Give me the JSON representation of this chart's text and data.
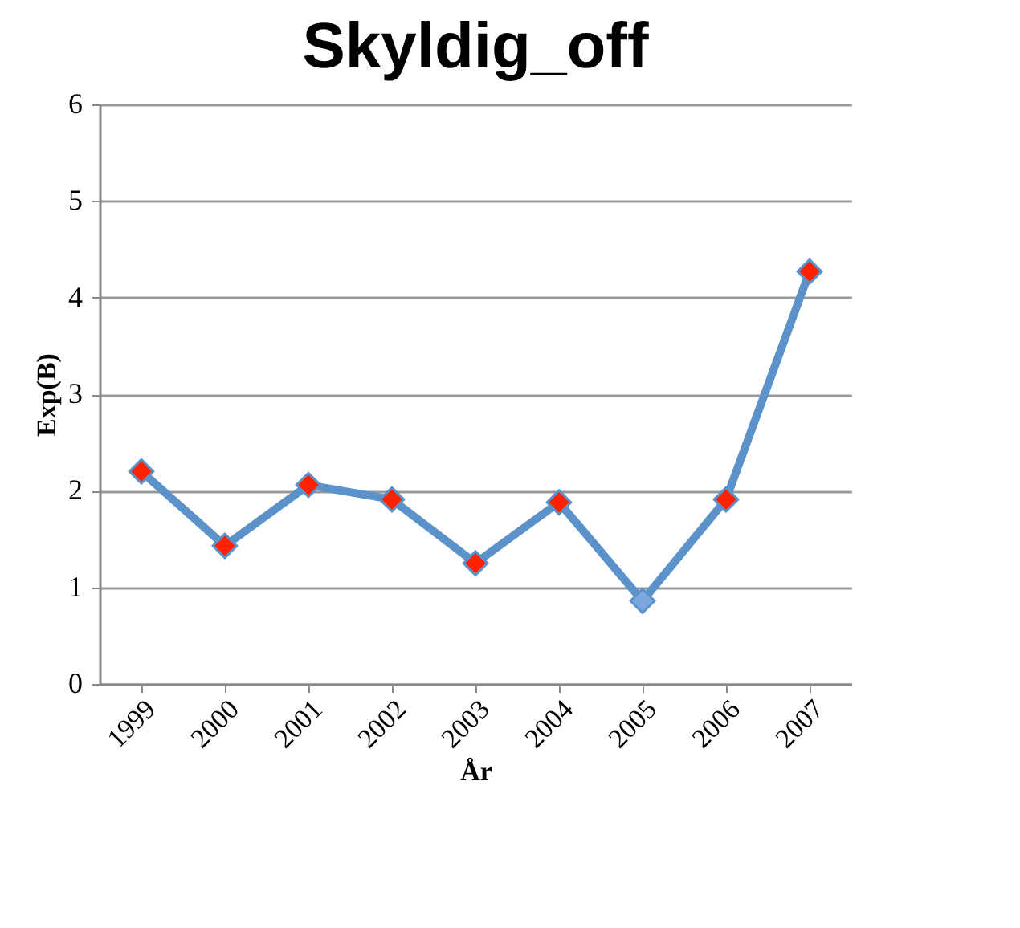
{
  "chart_data": {
    "type": "line",
    "title": "Skyldig_off",
    "xlabel": "År",
    "ylabel": "Exp(B)",
    "categories": [
      "1999",
      "2000",
      "2001",
      "2002",
      "2003",
      "2004",
      "2005",
      "2006",
      "2007"
    ],
    "series": [
      {
        "color": "#5b92c9",
        "colors": [
          "#ff2200",
          "#ff2200",
          "#ff2200",
          "#ff2200",
          "#ff2200",
          "#ff2200",
          "#7ba7dc",
          "#ff2200",
          "#ff2200"
        ],
        "values": [
          2.2,
          1.43,
          2.06,
          1.91,
          1.25,
          1.88,
          0.86,
          1.91,
          4.27
        ]
      }
    ],
    "ylim": [
      0,
      6
    ],
    "yticks": [
      0,
      1,
      2,
      3,
      4,
      5,
      6
    ],
    "grid": "y",
    "marker": "diamond",
    "line_style": "solid"
  }
}
